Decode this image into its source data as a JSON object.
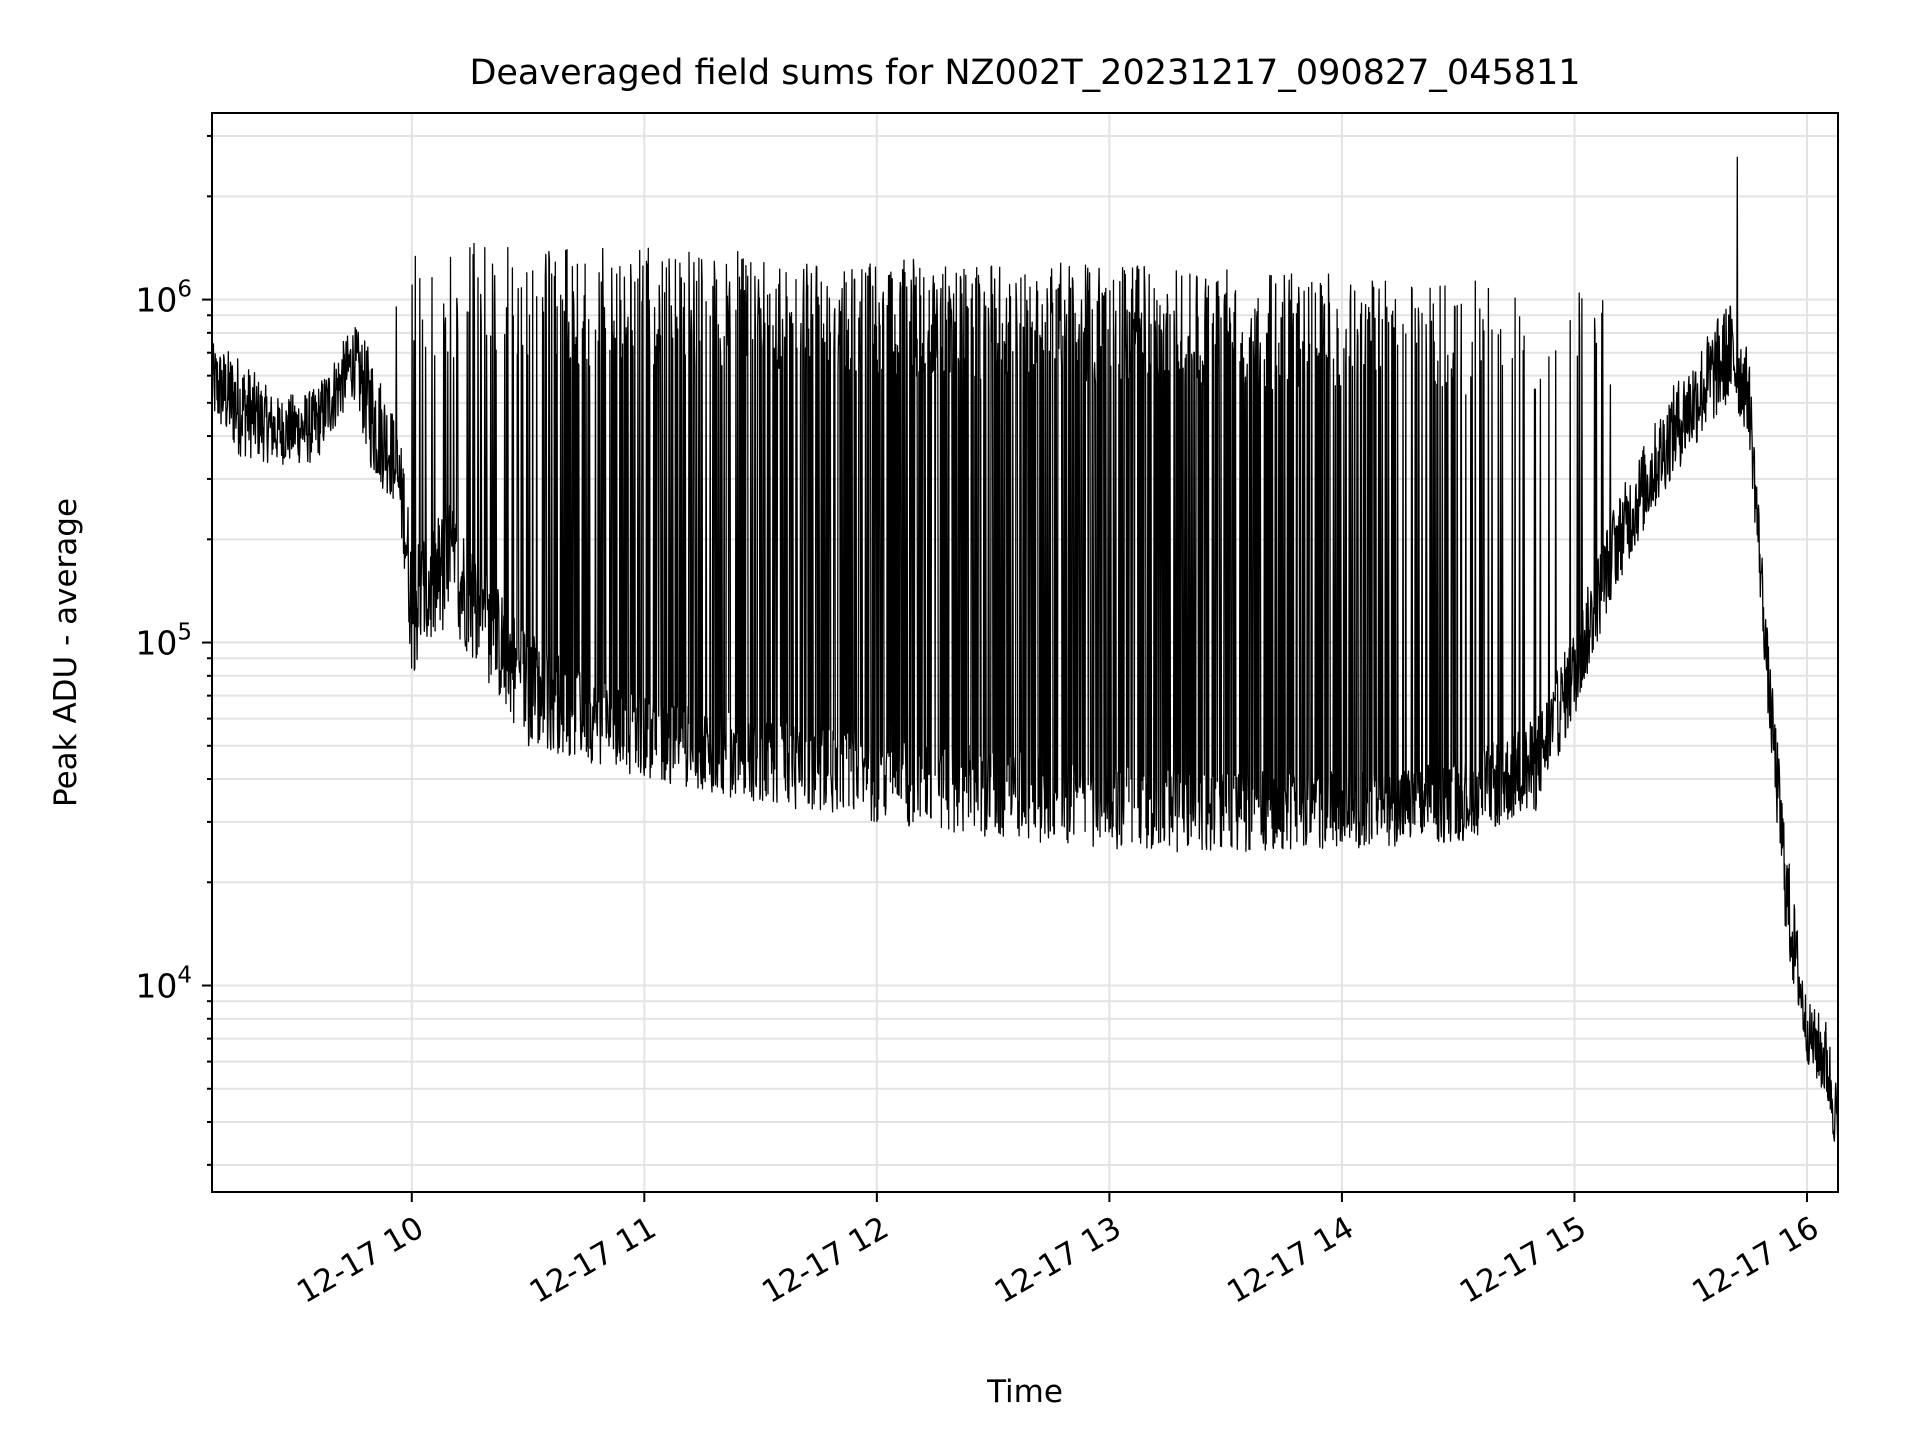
{
  "chart_data": {
    "type": "line",
    "title": "Deaveraged field sums for NZ002T_20231217_090827_045811",
    "xlabel": "Time",
    "ylabel": "Peak ADU - average",
    "yscale": "log",
    "ylim": [
      2500,
      3500000
    ],
    "xlim": [
      "2023-12-17 09:08:27",
      "2023-12-17 16:08:00"
    ],
    "grid": true,
    "x_ticks": [
      {
        "x": "2023-12-17 10:00",
        "label": "12-17 10"
      },
      {
        "x": "2023-12-17 11:00",
        "label": "12-17 11"
      },
      {
        "x": "2023-12-17 12:00",
        "label": "12-17 12"
      },
      {
        "x": "2023-12-17 13:00",
        "label": "12-17 13"
      },
      {
        "x": "2023-12-17 14:00",
        "label": "12-17 14"
      },
      {
        "x": "2023-12-17 15:00",
        "label": "12-17 15"
      },
      {
        "x": "2023-12-17 16:00",
        "label": "12-17 16"
      }
    ],
    "y_ticks": [
      {
        "y": 10000,
        "base": "10",
        "exp": "4"
      },
      {
        "y": 100000,
        "base": "10",
        "exp": "5"
      },
      {
        "y": 1000000,
        "base": "10",
        "exp": "6"
      }
    ],
    "series": [
      {
        "color": "#000000",
        "envelope": [
          {
            "x": "2023-12-17 09:08",
            "low": 450000,
            "high": 750000
          },
          {
            "x": "2023-12-17 09:15",
            "low": 350000,
            "high": 700000
          },
          {
            "x": "2023-12-17 09:25",
            "low": 330000,
            "high": 520000
          },
          {
            "x": "2023-12-17 09:35",
            "low": 330000,
            "high": 550000
          },
          {
            "x": "2023-12-17 09:45",
            "low": 520000,
            "high": 850000
          },
          {
            "x": "2023-12-17 09:50",
            "low": 300000,
            "high": 700000
          },
          {
            "x": "2023-12-17 09:55",
            "low": 260000,
            "high": 480000
          },
          {
            "x": "2023-12-17 09:58",
            "low": 170000,
            "high": 350000
          },
          {
            "x": "2023-12-17 10:00",
            "low": 80000,
            "high": 200000
          },
          {
            "x": "2023-12-17 10:10",
            "low": 110000,
            "high": 260000
          },
          {
            "x": "2023-12-17 10:20",
            "low": 75000,
            "high": 160000
          },
          {
            "x": "2023-12-17 10:30",
            "low": 50000,
            "high": 110000
          },
          {
            "x": "2023-12-17 10:45",
            "low": 45000,
            "high": 80000
          },
          {
            "x": "2023-12-17 11:00",
            "low": 40000,
            "high": 70000
          },
          {
            "x": "2023-12-17 11:30",
            "low": 34000,
            "high": 60000
          },
          {
            "x": "2023-12-17 12:00",
            "low": 30000,
            "high": 55000
          },
          {
            "x": "2023-12-17 12:30",
            "low": 27000,
            "high": 50000
          },
          {
            "x": "2023-12-17 13:00",
            "low": 25000,
            "high": 45000
          },
          {
            "x": "2023-12-17 13:30",
            "low": 24000,
            "high": 42000
          },
          {
            "x": "2023-12-17 14:00",
            "low": 25000,
            "high": 42000
          },
          {
            "x": "2023-12-17 14:30",
            "low": 26000,
            "high": 45000
          },
          {
            "x": "2023-12-17 14:50",
            "low": 32000,
            "high": 60000
          },
          {
            "x": "2023-12-17 15:00",
            "low": 60000,
            "high": 110000
          },
          {
            "x": "2023-12-17 15:10",
            "low": 140000,
            "high": 250000
          },
          {
            "x": "2023-12-17 15:25",
            "low": 300000,
            "high": 550000
          },
          {
            "x": "2023-12-17 15:40",
            "low": 500000,
            "high": 1000000
          },
          {
            "x": "2023-12-17 15:45",
            "low": 400000,
            "high": 700000
          },
          {
            "x": "2023-12-17 15:50",
            "low": 60000,
            "high": 100000
          },
          {
            "x": "2023-12-17 15:55",
            "low": 12000,
            "high": 25000
          },
          {
            "x": "2023-12-17 16:00",
            "low": 6000,
            "high": 9000
          },
          {
            "x": "2023-12-17 16:05",
            "low": 4500,
            "high": 8000
          },
          {
            "x": "2023-12-17 16:08",
            "low": 3000,
            "high": 5000
          }
        ],
        "spikes": {
          "start": "2023-12-17 09:55",
          "end": "2023-12-17 15:10",
          "peak_near_start": 1500000,
          "peak_mid": 1300000,
          "peak_near_end": 1100000
        },
        "max_point": {
          "x": "2023-12-17 15:42",
          "y": 2600000
        }
      }
    ]
  }
}
